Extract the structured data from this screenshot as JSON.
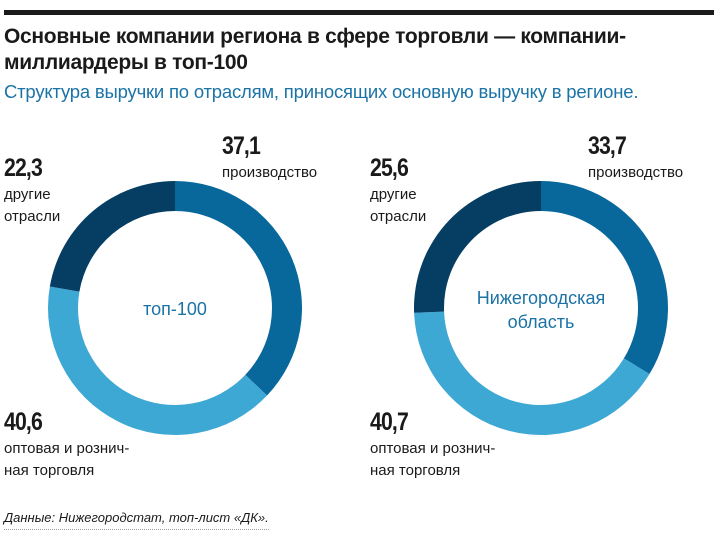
{
  "title": "Основные компании региона в сфере торговли — компании-миллиардеры в топ-100",
  "subtitle": "Структура выручки по отраслям, приносящих основную выручку в регионе.",
  "source": "Данные: Нижегородстат, топ-лист «ДК».",
  "colors": {
    "production": "#08679b",
    "trade": "#3ea8d4",
    "other": "#053e62"
  },
  "chart_data": [
    {
      "type": "pie",
      "title": "топ-100",
      "categories": [
        "производство",
        "оптовая и розничная торговля",
        "другие отрасли"
      ],
      "values": [
        37.1,
        40.6,
        22.3
      ],
      "value_labels": [
        "37,1",
        "40,6",
        "22,3"
      ]
    },
    {
      "type": "pie",
      "title": "Нижегородская область",
      "categories": [
        "производство",
        "оптовая и розничная торговля",
        "другие отрасли"
      ],
      "values": [
        33.7,
        40.7,
        25.6
      ],
      "value_labels": [
        "33,7",
        "40,7",
        "25,6"
      ]
    }
  ],
  "labels": {
    "production": "производство",
    "trade_line1": "оптовая и рознич-",
    "trade_line2": "ная торговля",
    "other_line1": "другие",
    "other_line2": "отрасли",
    "center_left": "топ-100",
    "center_right_line1": "Нижегородская",
    "center_right_line2": "область"
  }
}
